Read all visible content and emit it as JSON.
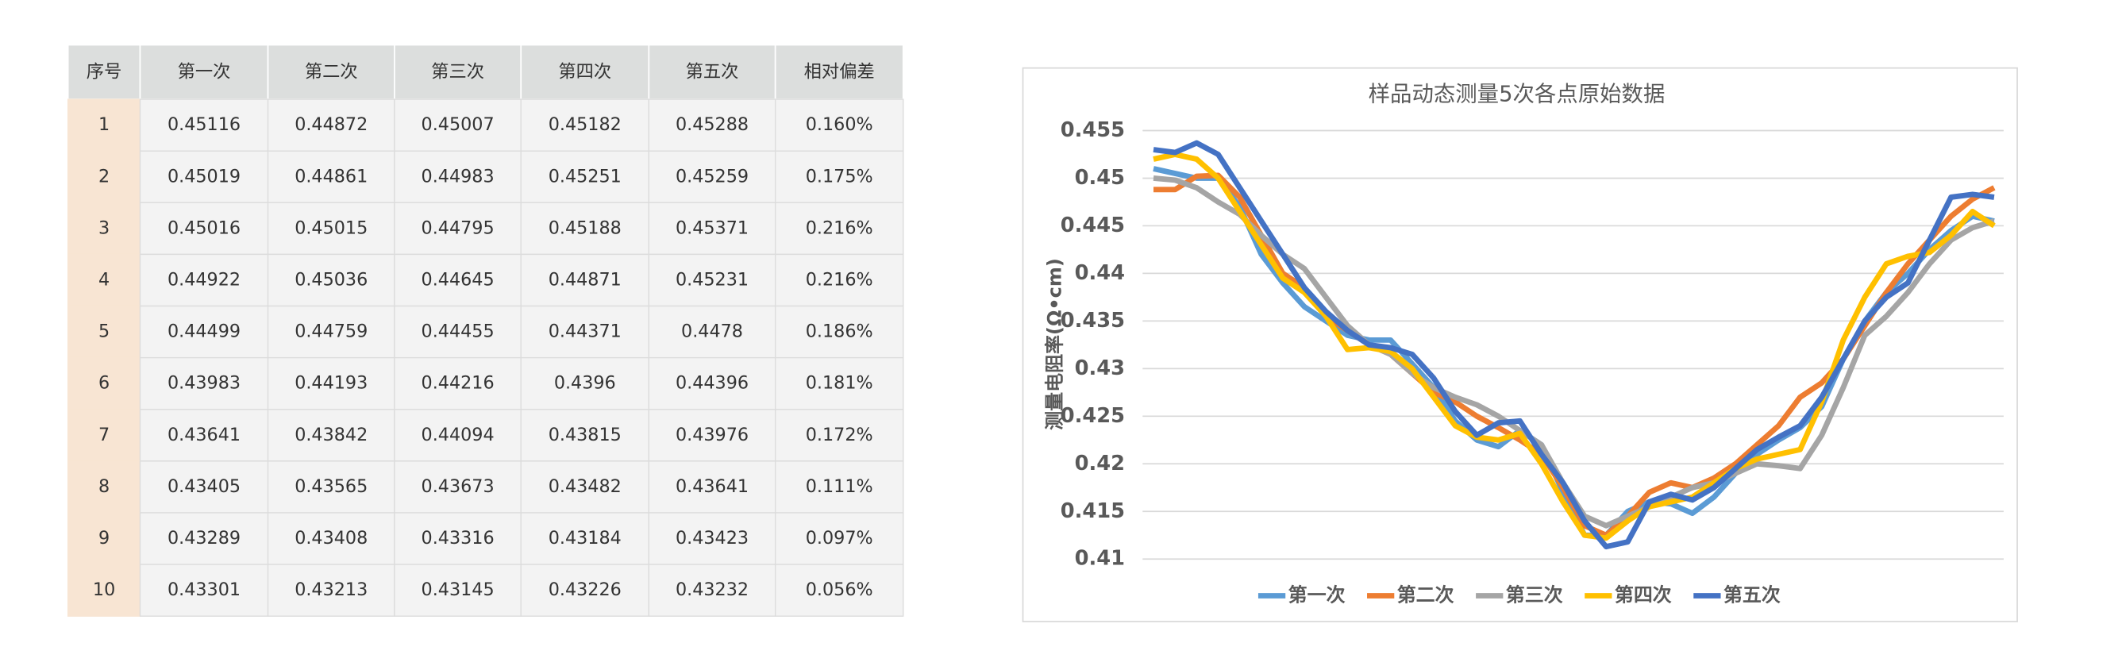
{
  "table": {
    "header": [
      "序号",
      "第一次",
      "第二次",
      "第三次",
      "第四次",
      "第五次",
      "相对偏差"
    ],
    "rows": [
      [
        "1",
        "0.45116",
        "0.44872",
        "0.45007",
        "0.45182",
        "0.45288",
        "0.160%"
      ],
      [
        "2",
        "0.45019",
        "0.44861",
        "0.44983",
        "0.45251",
        "0.45259",
        "0.175%"
      ],
      [
        "3",
        "0.45016",
        "0.45015",
        "0.44795",
        "0.45188",
        "0.45371",
        "0.216%"
      ],
      [
        "4",
        "0.44922",
        "0.45036",
        "0.44645",
        "0.44871",
        "0.45231",
        "0.216%"
      ],
      [
        "5",
        "0.44499",
        "0.44759",
        "0.44455",
        "0.44371",
        "0.4478",
        "0.186%"
      ],
      [
        "6",
        "0.43983",
        "0.44193",
        "0.44216",
        "0.4396",
        "0.44396",
        "0.181%"
      ],
      [
        "7",
        "0.43641",
        "0.43842",
        "0.44094",
        "0.43815",
        "0.43976",
        "0.172%"
      ],
      [
        "8",
        "0.43405",
        "0.43565",
        "0.43673",
        "0.43482",
        "0.43641",
        "0.111%"
      ],
      [
        "9",
        "0.43289",
        "0.43408",
        "0.43316",
        "0.43184",
        "0.43423",
        "0.097%"
      ],
      [
        "10",
        "0.43301",
        "0.43213",
        "0.43145",
        "0.43226",
        "0.43232",
        "0.056%"
      ]
    ]
  },
  "chart_data": {
    "type": "line",
    "title": "样品动态测量5次各点原始数据",
    "y_label": "测量电阻率(Ω•cm)",
    "categories": [
      null,
      null,
      null,
      null,
      null,
      null,
      null,
      null,
      null,
      null,
      null,
      null,
      null,
      null,
      null,
      null,
      null,
      null,
      null,
      null,
      null,
      null,
      null,
      null,
      null,
      null,
      null,
      null,
      null,
      null,
      null,
      null,
      null,
      null,
      null,
      null,
      null,
      null,
      null,
      null
    ],
    "ylim": [
      0.41,
      0.455
    ],
    "yticks": [
      0.41,
      0.415,
      0.42,
      0.425,
      0.43,
      0.435,
      0.44,
      0.445,
      0.45,
      0.455
    ],
    "grid": true,
    "legend": "bottom",
    "series": [
      {
        "name": "第一次",
        "color": "#5b9bd5",
        "values": [
          0.451,
          0.4505,
          0.45,
          0.45,
          0.447,
          0.442,
          0.439,
          0.4365,
          0.435,
          0.4335,
          0.433,
          0.433,
          0.4305,
          0.428,
          0.4245,
          0.4225,
          0.4218,
          0.4235,
          0.422,
          0.417,
          0.4125,
          0.4125,
          0.415,
          0.416,
          0.4158,
          0.4148,
          0.4165,
          0.419,
          0.421,
          0.4225,
          0.4238,
          0.426,
          0.431,
          0.435,
          0.438,
          0.44,
          0.4425,
          0.4445,
          0.446,
          0.4455
        ]
      },
      {
        "name": "第二次",
        "color": "#ed7d31",
        "values": [
          0.4488,
          0.4488,
          0.4502,
          0.4503,
          0.448,
          0.444,
          0.44,
          0.4385,
          0.4355,
          0.434,
          0.4325,
          0.4315,
          0.4295,
          0.4275,
          0.4265,
          0.425,
          0.4238,
          0.4225,
          0.421,
          0.4175,
          0.4135,
          0.4125,
          0.4145,
          0.417,
          0.418,
          0.4175,
          0.4185,
          0.42,
          0.422,
          0.424,
          0.427,
          0.4285,
          0.431,
          0.4345,
          0.438,
          0.441,
          0.4435,
          0.446,
          0.4478,
          0.449
        ]
      },
      {
        "name": "第三次",
        "color": "#a5a5a5",
        "values": [
          0.45,
          0.4498,
          0.449,
          0.4475,
          0.4462,
          0.444,
          0.442,
          0.4405,
          0.4375,
          0.4345,
          0.4325,
          0.4315,
          0.4295,
          0.428,
          0.427,
          0.4262,
          0.425,
          0.4235,
          0.422,
          0.418,
          0.4145,
          0.4135,
          0.4145,
          0.4155,
          0.4165,
          0.4175,
          0.418,
          0.419,
          0.42,
          0.4198,
          0.4195,
          0.423,
          0.428,
          0.4335,
          0.4355,
          0.438,
          0.441,
          0.4435,
          0.4448,
          0.4455
        ]
      },
      {
        "name": "第四次",
        "color": "#ffc000",
        "values": [
          0.452,
          0.4525,
          0.452,
          0.45,
          0.4465,
          0.443,
          0.4395,
          0.438,
          0.4355,
          0.432,
          0.4322,
          0.4318,
          0.43,
          0.427,
          0.424,
          0.4228,
          0.4225,
          0.4232,
          0.42,
          0.416,
          0.4125,
          0.4122,
          0.414,
          0.4155,
          0.416,
          0.4165,
          0.418,
          0.4195,
          0.4205,
          0.421,
          0.4215,
          0.4265,
          0.433,
          0.4375,
          0.441,
          0.4418,
          0.4422,
          0.444,
          0.4465,
          0.445
        ]
      },
      {
        "name": "第五次",
        "color": "#4472c4",
        "values": [
          0.453,
          0.4527,
          0.4537,
          0.4525,
          0.449,
          0.4455,
          0.442,
          0.4385,
          0.436,
          0.434,
          0.4325,
          0.4322,
          0.4315,
          0.429,
          0.4255,
          0.423,
          0.4243,
          0.4245,
          0.421,
          0.418,
          0.414,
          0.4113,
          0.4118,
          0.416,
          0.4168,
          0.4162,
          0.4175,
          0.4195,
          0.4215,
          0.4228,
          0.424,
          0.427,
          0.431,
          0.435,
          0.4375,
          0.439,
          0.4435,
          0.448,
          0.4483,
          0.448
        ]
      }
    ]
  }
}
